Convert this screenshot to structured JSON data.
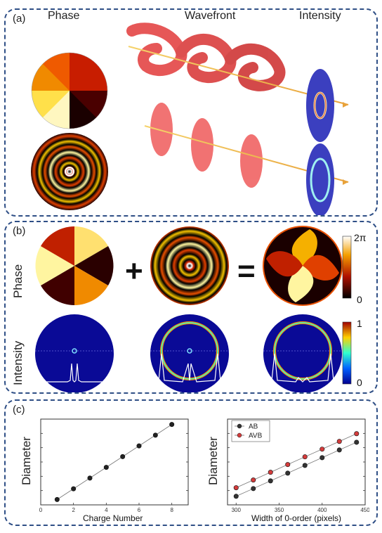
{
  "top_caption": "",
  "panel_a": {
    "label": "(a)",
    "headers": {
      "phase": "Phase",
      "wavefront": "Wavefront",
      "intensity": "Intensity"
    }
  },
  "panel_b": {
    "label": "(b)",
    "row_labels": {
      "phase": "Phase",
      "intensity": "Intensity"
    },
    "operators": {
      "plus": "+",
      "equals": "="
    },
    "phase_colorbar": {
      "max": "2π",
      "min": "0"
    },
    "intensity_colorbar": {
      "max": "1",
      "min": "0"
    }
  },
  "panel_c": {
    "label": "(c)"
  },
  "colors": {
    "panel_border": "#2f4f86",
    "beam": "#f2c84b",
    "wave_red": "#e23a3a"
  },
  "chart_data": [
    {
      "type": "scatter",
      "xlabel": "Charge Number",
      "ylabel": "Diameter",
      "x": [
        1,
        2,
        3,
        4,
        5,
        6,
        7,
        8
      ],
      "y": [
        0.5,
        1.5,
        2.5,
        3.5,
        4.5,
        5.5,
        6.5,
        7.5
      ],
      "xlim": [
        0,
        9
      ],
      "ylim": [
        0,
        8
      ],
      "xticks": [
        "0",
        "2",
        "4",
        "6",
        "8"
      ],
      "fit_line": true
    },
    {
      "type": "scatter",
      "xlabel": "Width of 0-order (pixels)",
      "ylabel": "Diameter",
      "xlim": [
        290,
        450
      ],
      "ylim": [
        0,
        10
      ],
      "xticks": [
        "300",
        "350",
        "400",
        "450"
      ],
      "legend_position": "top-left",
      "fit_line": true,
      "x": [
        300,
        320,
        340,
        360,
        380,
        400,
        420,
        440
      ],
      "series": [
        {
          "name": "AB",
          "color": "#333333",
          "values": [
            1.0,
            1.9,
            2.8,
            3.7,
            4.6,
            5.5,
            6.4,
            7.3
          ]
        },
        {
          "name": "AVB",
          "color": "#d43c3c",
          "values": [
            2.0,
            2.9,
            3.8,
            4.7,
            5.6,
            6.5,
            7.4,
            8.3
          ]
        }
      ]
    }
  ]
}
